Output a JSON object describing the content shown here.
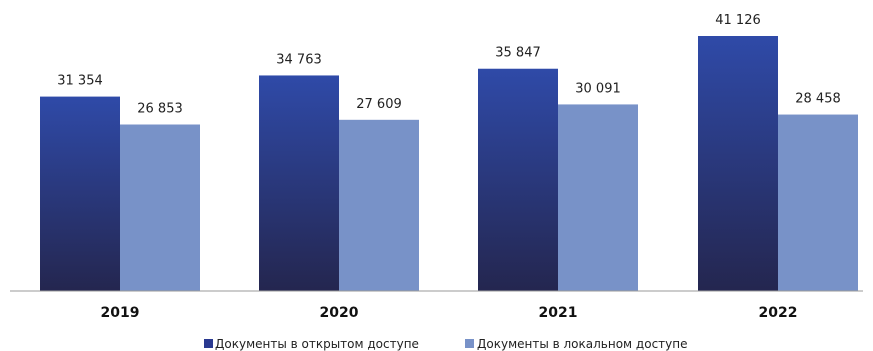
{
  "chart_data": {
    "type": "bar",
    "categories": [
      "2019",
      "2020",
      "2021",
      "2022"
    ],
    "series": [
      {
        "name": "Документы в открытом доступе",
        "values": [
          31354,
          34763,
          35847,
          41126
        ],
        "value_labels": [
          "31 354",
          "34 763",
          "35 847",
          "41 126"
        ]
      },
      {
        "name": "Документы в локальном доступе",
        "values": [
          26853,
          27609,
          30091,
          28458
        ],
        "value_labels": [
          "26 853",
          "27 609",
          "30 091",
          "28 458"
        ]
      }
    ],
    "ylim": [
      0,
      45000
    ],
    "grid": false,
    "legend_position": "bottom",
    "colors": {
      "series1_top": "#2f4aa8",
      "series1_bottom": "#24264f",
      "series2": "#7892c8",
      "axis": "#9a9a9a"
    }
  }
}
